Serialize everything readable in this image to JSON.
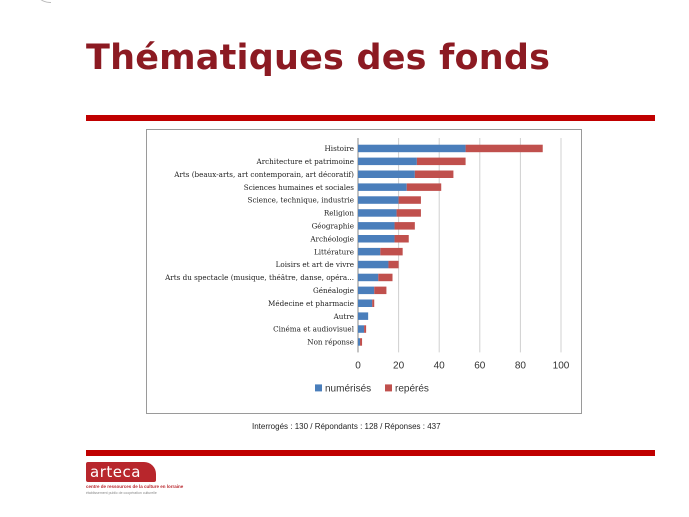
{
  "slide": {
    "title": "Thématiques des fonds",
    "footnote": "Interrogés : 130 / Répondants : 128 / Réponses : 437"
  },
  "logo": {
    "name": "arteca",
    "tagline": "centre de ressources de la culture en lorraine",
    "subtitle": "établissement public de coopération culturelle"
  },
  "colors": {
    "title": "#8c1a22",
    "rule": "#c00000",
    "numerises": "#4a7ebb",
    "reperes": "#c0504d"
  },
  "chart_data": {
    "type": "bar",
    "orientation": "horizontal",
    "stacked": true,
    "categories": [
      "Histoire",
      "Architecture et patrimoine",
      "Arts (beaux-arts, art contemporain, art décoratif)",
      "Sciences humaines et sociales",
      "Science, technique, industrie",
      "Religion",
      "Géographie",
      "Archéologie",
      "Littérature",
      "Loisirs et art de vivre",
      "Arts du spectacle (musique, théâtre, danse, opéra...",
      "Généalogie",
      "Médecine et pharmacie",
      "Autre",
      "Cinéma et audiovisuel",
      "Non réponse"
    ],
    "series": [
      {
        "name": "numérisés",
        "color": "#4a7ebb",
        "values": [
          53,
          29,
          28,
          24,
          20,
          19,
          18,
          18,
          11,
          15,
          10,
          8,
          7,
          5,
          3,
          1
        ]
      },
      {
        "name": "repérés",
        "color": "#c0504d",
        "values": [
          38,
          24,
          19,
          17,
          11,
          12,
          10,
          7,
          11,
          5,
          7,
          6,
          1,
          0,
          1,
          1
        ]
      }
    ],
    "xlim": [
      0,
      100
    ],
    "xticks": [
      0,
      20,
      40,
      60,
      80,
      100
    ],
    "grid": true,
    "legend": "bottom"
  }
}
